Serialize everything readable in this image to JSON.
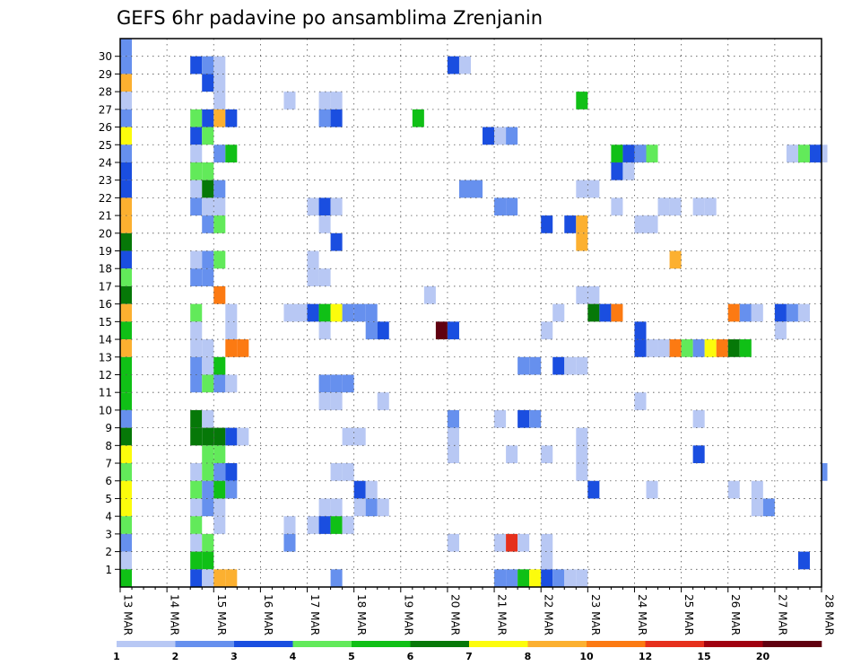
{
  "chart_data": {
    "type": "heatmap",
    "title": "GEFS 6hr padavine po ansamblima Zrenjanin",
    "xlabel": "",
    "ylabel": "",
    "x_tick_labels": [
      "13 MAR",
      "14 MAR",
      "15 MAR",
      "16 MAR",
      "17 MAR",
      "18 MAR",
      "19 MAR",
      "20 MAR",
      "21 MAR",
      "22 MAR",
      "23 MAR",
      "24 MAR",
      "25 MAR",
      "26 MAR",
      "27 MAR",
      "28 MAR"
    ],
    "y_tick_labels": [
      "1",
      "2",
      "3",
      "4",
      "5",
      "6",
      "7",
      "8",
      "9",
      "10",
      "11",
      "12",
      "13",
      "14",
      "15",
      "16",
      "17",
      "18",
      "19",
      "20",
      "21",
      "22",
      "23",
      "24",
      "25",
      "26",
      "27",
      "28",
      "29",
      "30"
    ],
    "x_range_steps": [
      0,
      60
    ],
    "y_range_members": [
      0,
      30
    ],
    "grid": true,
    "colorbar": {
      "placement": "bottom",
      "levels": [
        "1",
        "2",
        "3",
        "4",
        "5",
        "6",
        "7",
        "8",
        "10",
        "12",
        "15",
        "20"
      ],
      "colors": [
        "#b8c8f4",
        "#6690ee",
        "#1a4ee0",
        "#62ea5a",
        "#10c016",
        "#067808",
        "#fcfc0c",
        "#fcb030",
        "#fc7a12",
        "#e6301c",
        "#a00010",
        "#600010"
      ]
    },
    "cells": [
      [
        30,
        0,
        1
      ],
      [
        29,
        0,
        1
      ],
      [
        28,
        0,
        7
      ],
      [
        27,
        0,
        0
      ],
      [
        26,
        0,
        1
      ],
      [
        25,
        0,
        6
      ],
      [
        24,
        0,
        1
      ],
      [
        23,
        0,
        2
      ],
      [
        22,
        0,
        2
      ],
      [
        21,
        0,
        7
      ],
      [
        20,
        0,
        7
      ],
      [
        19,
        0,
        5
      ],
      [
        18,
        0,
        2
      ],
      [
        17,
        0,
        3
      ],
      [
        16,
        0,
        5
      ],
      [
        15,
        0,
        7
      ],
      [
        14,
        0,
        4
      ],
      [
        13,
        0,
        7
      ],
      [
        12,
        0,
        4
      ],
      [
        11,
        0,
        4
      ],
      [
        10,
        0,
        4
      ],
      [
        9,
        0,
        1
      ],
      [
        8,
        0,
        5
      ],
      [
        7,
        0,
        6
      ],
      [
        6,
        0,
        3
      ],
      [
        5,
        0,
        6
      ],
      [
        4,
        0,
        6
      ],
      [
        3,
        0,
        3
      ],
      [
        2,
        0,
        1
      ],
      [
        1,
        0,
        0
      ],
      [
        0,
        0,
        4
      ],
      [
        29,
        6,
        2
      ],
      [
        29,
        7,
        1
      ],
      [
        29,
        8,
        0
      ],
      [
        28,
        7,
        2
      ],
      [
        28,
        8,
        0
      ],
      [
        27,
        8,
        0
      ],
      [
        26,
        6,
        3
      ],
      [
        26,
        7,
        2
      ],
      [
        26,
        8,
        7
      ],
      [
        26,
        9,
        2
      ],
      [
        25,
        6,
        2
      ],
      [
        25,
        7,
        3
      ],
      [
        24,
        6,
        0
      ],
      [
        24,
        8,
        1
      ],
      [
        24,
        9,
        4
      ],
      [
        23,
        6,
        3
      ],
      [
        23,
        7,
        3
      ],
      [
        22,
        6,
        0
      ],
      [
        22,
        7,
        5
      ],
      [
        22,
        8,
        1
      ],
      [
        21,
        6,
        1
      ],
      [
        21,
        7,
        0
      ],
      [
        21,
        8,
        0
      ],
      [
        20,
        7,
        1
      ],
      [
        20,
        8,
        3
      ],
      [
        18,
        6,
        0
      ],
      [
        18,
        7,
        1
      ],
      [
        18,
        8,
        3
      ],
      [
        17,
        6,
        1
      ],
      [
        17,
        7,
        1
      ],
      [
        16,
        8,
        8
      ],
      [
        15,
        6,
        3
      ],
      [
        15,
        9,
        0
      ],
      [
        14,
        6,
        0
      ],
      [
        14,
        9,
        0
      ],
      [
        13,
        6,
        0
      ],
      [
        13,
        7,
        0
      ],
      [
        13,
        9,
        8
      ],
      [
        13,
        10,
        8
      ],
      [
        12,
        6,
        1
      ],
      [
        12,
        7,
        0
      ],
      [
        12,
        8,
        4
      ],
      [
        11,
        6,
        1
      ],
      [
        11,
        7,
        3
      ],
      [
        11,
        8,
        1
      ],
      [
        11,
        9,
        0
      ],
      [
        9,
        6,
        5
      ],
      [
        9,
        7,
        0
      ],
      [
        8,
        6,
        5
      ],
      [
        8,
        7,
        5
      ],
      [
        8,
        8,
        5
      ],
      [
        8,
        9,
        2
      ],
      [
        8,
        10,
        0
      ],
      [
        7,
        7,
        3
      ],
      [
        7,
        8,
        3
      ],
      [
        6,
        6,
        0
      ],
      [
        6,
        7,
        3
      ],
      [
        6,
        8,
        1
      ],
      [
        6,
        9,
        2
      ],
      [
        5,
        6,
        3
      ],
      [
        5,
        7,
        1
      ],
      [
        5,
        8,
        4
      ],
      [
        5,
        9,
        1
      ],
      [
        4,
        6,
        0
      ],
      [
        4,
        7,
        1
      ],
      [
        4,
        8,
        0
      ],
      [
        3,
        6,
        3
      ],
      [
        3,
        8,
        0
      ],
      [
        2,
        6,
        0
      ],
      [
        2,
        7,
        3
      ],
      [
        1,
        6,
        4
      ],
      [
        1,
        7,
        4
      ],
      [
        0,
        6,
        2
      ],
      [
        0,
        7,
        0
      ],
      [
        0,
        8,
        7
      ],
      [
        0,
        9,
        7
      ],
      [
        27,
        14,
        0
      ],
      [
        27,
        17,
        0
      ],
      [
        27,
        18,
        0
      ],
      [
        26,
        17,
        1
      ],
      [
        26,
        18,
        2
      ],
      [
        21,
        16,
        0
      ],
      [
        21,
        17,
        2
      ],
      [
        21,
        18,
        0
      ],
      [
        20,
        17,
        0
      ],
      [
        18,
        16,
        0
      ],
      [
        17,
        16,
        0
      ],
      [
        17,
        17,
        0
      ],
      [
        19,
        18,
        2
      ],
      [
        15,
        14,
        0
      ],
      [
        15,
        15,
        0
      ],
      [
        15,
        16,
        2
      ],
      [
        15,
        17,
        4
      ],
      [
        15,
        18,
        6
      ],
      [
        15,
        19,
        1
      ],
      [
        15,
        20,
        1
      ],
      [
        15,
        21,
        1
      ],
      [
        14,
        17,
        0
      ],
      [
        14,
        21,
        1
      ],
      [
        14,
        22,
        2
      ],
      [
        11,
        17,
        1
      ],
      [
        11,
        18,
        1
      ],
      [
        11,
        19,
        1
      ],
      [
        10,
        17,
        0
      ],
      [
        10,
        18,
        0
      ],
      [
        10,
        22,
        0
      ],
      [
        8,
        19,
        0
      ],
      [
        8,
        20,
        0
      ],
      [
        6,
        18,
        0
      ],
      [
        6,
        19,
        0
      ],
      [
        5,
        20,
        2
      ],
      [
        5,
        21,
        0
      ],
      [
        4,
        17,
        0
      ],
      [
        4,
        18,
        0
      ],
      [
        4,
        20,
        0
      ],
      [
        4,
        21,
        1
      ],
      [
        4,
        22,
        0
      ],
      [
        3,
        14,
        0
      ],
      [
        3,
        16,
        0
      ],
      [
        3,
        17,
        2
      ],
      [
        3,
        18,
        4
      ],
      [
        3,
        19,
        0
      ],
      [
        2,
        14,
        1
      ],
      [
        0,
        18,
        1
      ],
      [
        29,
        28,
        2
      ],
      [
        29,
        29,
        0
      ],
      [
        26,
        25,
        4
      ],
      [
        22,
        29,
        1
      ],
      [
        22,
        30,
        1
      ],
      [
        16,
        26,
        0
      ],
      [
        14,
        27,
        11
      ],
      [
        14,
        28,
        2
      ],
      [
        9,
        28,
        1
      ],
      [
        8,
        28,
        0
      ],
      [
        7,
        28,
        0
      ],
      [
        2,
        28,
        0
      ],
      [
        25,
        31,
        2
      ],
      [
        25,
        32,
        0
      ],
      [
        25,
        33,
        1
      ],
      [
        21,
        32,
        1
      ],
      [
        21,
        33,
        1
      ],
      [
        12,
        34,
        1
      ],
      [
        9,
        32,
        0
      ],
      [
        9,
        34,
        2
      ],
      [
        9,
        35,
        1
      ],
      [
        7,
        33,
        0
      ],
      [
        2,
        32,
        0
      ],
      [
        2,
        33,
        9
      ],
      [
        2,
        34,
        0
      ],
      [
        0,
        32,
        1
      ],
      [
        0,
        33,
        1
      ],
      [
        0,
        34,
        4
      ],
      [
        0,
        35,
        6
      ],
      [
        0,
        36,
        2
      ],
      [
        0,
        37,
        1
      ],
      [
        27,
        39,
        4
      ],
      [
        24,
        42,
        4
      ],
      [
        24,
        43,
        2
      ],
      [
        24,
        44,
        1
      ],
      [
        24,
        45,
        3
      ],
      [
        23,
        42,
        2
      ],
      [
        23,
        43,
        0
      ],
      [
        22,
        39,
        0
      ],
      [
        22,
        40,
        0
      ],
      [
        21,
        42,
        0
      ],
      [
        20,
        36,
        2
      ],
      [
        20,
        38,
        2
      ],
      [
        20,
        39,
        7
      ],
      [
        19,
        39,
        7
      ],
      [
        16,
        39,
        0
      ],
      [
        16,
        40,
        0
      ],
      [
        15,
        40,
        5
      ],
      [
        15,
        41,
        2
      ],
      [
        15,
        42,
        8
      ],
      [
        15,
        37,
        0
      ],
      [
        14,
        36,
        0
      ],
      [
        13,
        44,
        2
      ],
      [
        12,
        35,
        1
      ],
      [
        12,
        37,
        2
      ],
      [
        12,
        38,
        0
      ],
      [
        12,
        39,
        0
      ],
      [
        10,
        44,
        0
      ],
      [
        8,
        39,
        0
      ],
      [
        7,
        36,
        0
      ],
      [
        7,
        39,
        0
      ],
      [
        6,
        39,
        0
      ],
      [
        5,
        40,
        2
      ],
      [
        2,
        36,
        0
      ],
      [
        1,
        36,
        0
      ],
      [
        0,
        38,
        0
      ],
      [
        0,
        39,
        0
      ],
      [
        21,
        46,
        0
      ],
      [
        21,
        47,
        0
      ],
      [
        21,
        49,
        0
      ],
      [
        21,
        50,
        0
      ],
      [
        20,
        44,
        0
      ],
      [
        20,
        45,
        0
      ],
      [
        18,
        47,
        7
      ],
      [
        14,
        44,
        2
      ],
      [
        13,
        45,
        0
      ],
      [
        13,
        46,
        0
      ],
      [
        13,
        47,
        8
      ],
      [
        13,
        48,
        3
      ],
      [
        13,
        49,
        1
      ],
      [
        13,
        50,
        6
      ],
      [
        13,
        51,
        8
      ],
      [
        13,
        52,
        5
      ],
      [
        13,
        53,
        4
      ],
      [
        15,
        52,
        8
      ],
      [
        15,
        53,
        1
      ],
      [
        15,
        54,
        0
      ],
      [
        9,
        49,
        0
      ],
      [
        7,
        49,
        2
      ],
      [
        5,
        45,
        0
      ],
      [
        5,
        52,
        0
      ],
      [
        5,
        54,
        0
      ],
      [
        4,
        54,
        0
      ],
      [
        4,
        55,
        1
      ],
      [
        1,
        58,
        2
      ],
      [
        24,
        57,
        0
      ],
      [
        24,
        58,
        3
      ],
      [
        24,
        59,
        2
      ],
      [
        24,
        60,
        0
      ],
      [
        15,
        56,
        2
      ],
      [
        15,
        57,
        1
      ],
      [
        15,
        58,
        0
      ],
      [
        14,
        56,
        0
      ],
      [
        6,
        60,
        1
      ]
    ]
  }
}
